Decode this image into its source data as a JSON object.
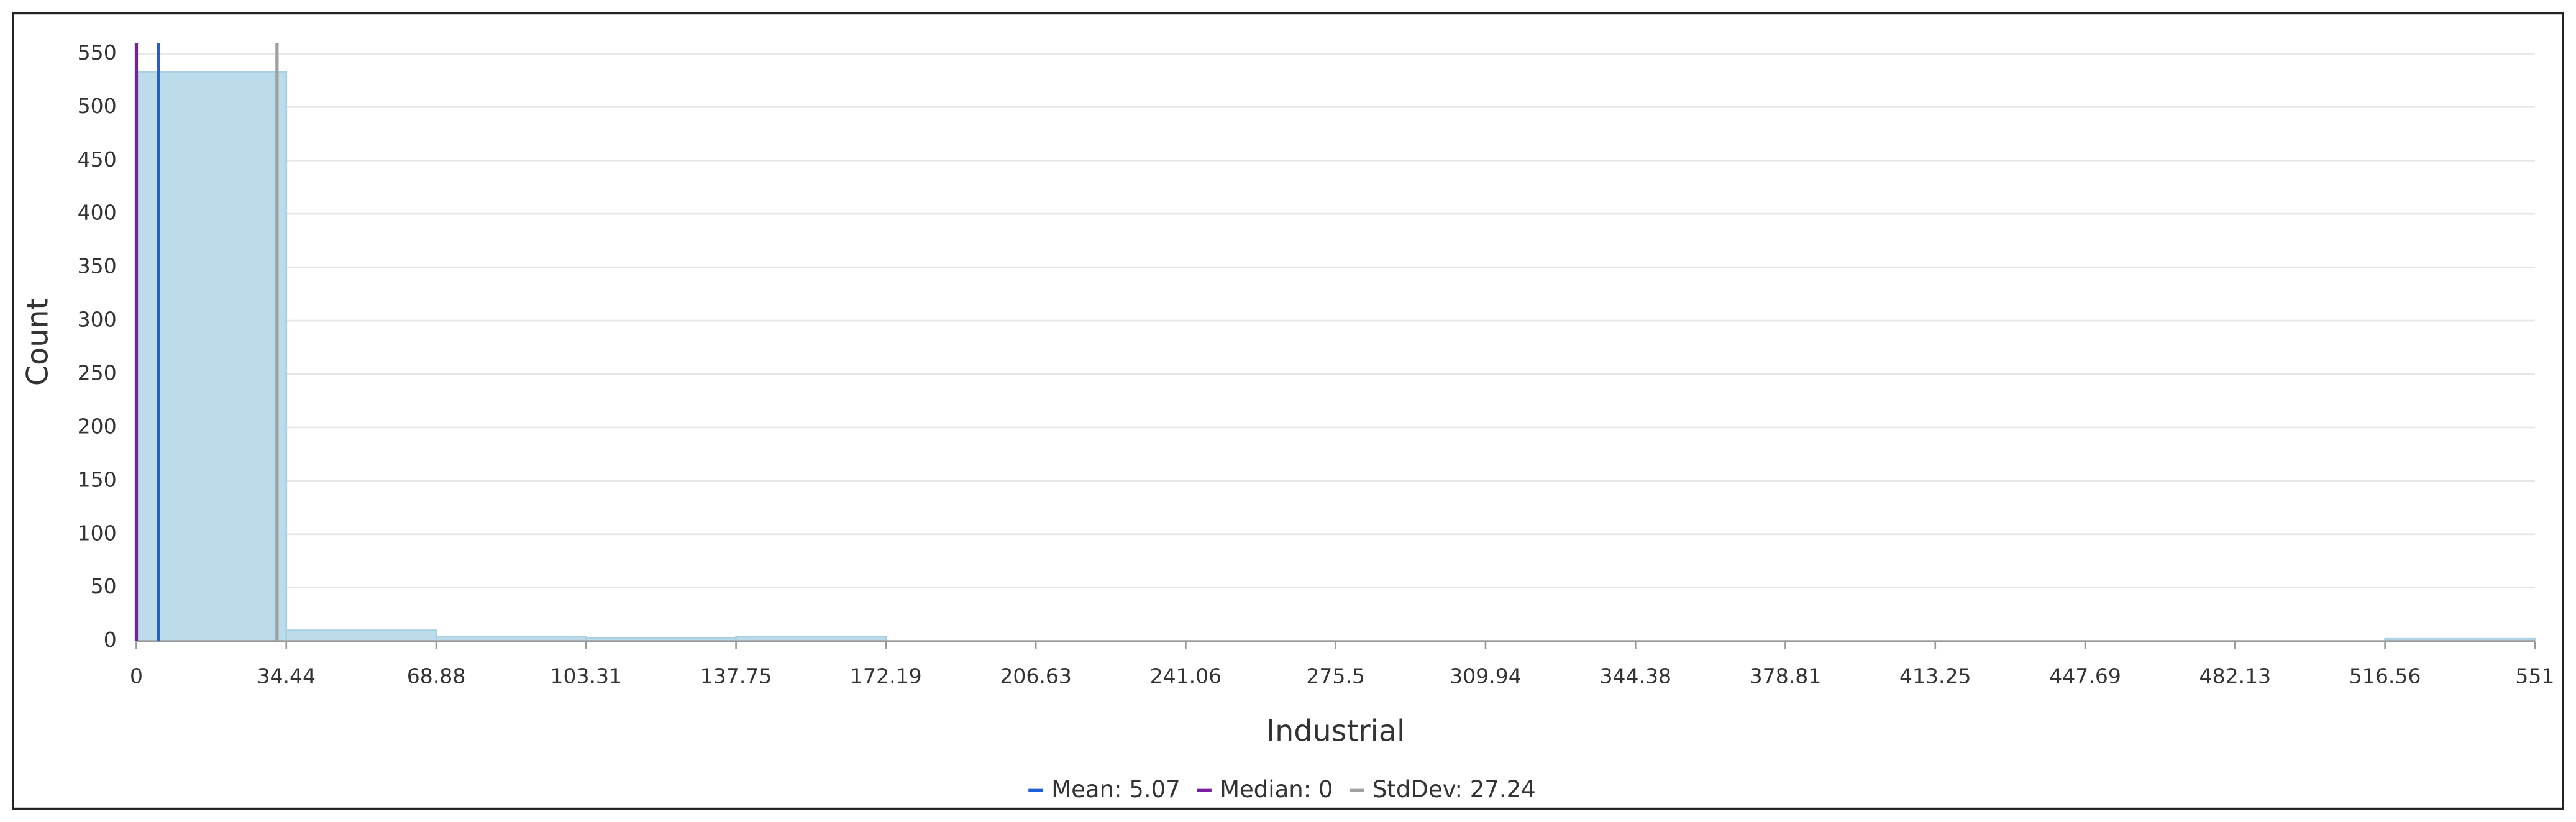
{
  "chart_data": {
    "type": "histogram",
    "x_label": "Industrial",
    "y_label": "Count",
    "bins": [
      0,
      34.44,
      68.88,
      103.31,
      137.75,
      172.19,
      206.63,
      241.06,
      275.5,
      309.94,
      344.38,
      378.81,
      413.25,
      447.69,
      482.13,
      516.56,
      551
    ],
    "counts": [
      533,
      10,
      4,
      3,
      4,
      0,
      0,
      0,
      0,
      0,
      0,
      0,
      0,
      0,
      0,
      2
    ],
    "color": "#bcdbeb",
    "xlim": [
      0,
      551
    ],
    "xticks": [
      0,
      34.44,
      68.88,
      103.31,
      137.75,
      172.19,
      206.63,
      241.06,
      275.5,
      309.94,
      344.38,
      378.81,
      413.25,
      447.69,
      482.13,
      516.56,
      551
    ],
    "ylim": [
      0,
      560
    ],
    "yticks": [
      0,
      50,
      100,
      150,
      200,
      250,
      300,
      350,
      400,
      450,
      500,
      550
    ],
    "grid": true,
    "stats": [
      {
        "name": "Mean",
        "value": 5.07,
        "label": "Mean: 5.07",
        "color": "#1f5fd6"
      },
      {
        "name": "Median",
        "value": 0,
        "label": "Median: 0",
        "color": "#7a1fa2"
      },
      {
        "name": "StdDev",
        "value": 27.24,
        "label": "StdDev: 27.24",
        "color": "#a0a0a0"
      }
    ]
  }
}
